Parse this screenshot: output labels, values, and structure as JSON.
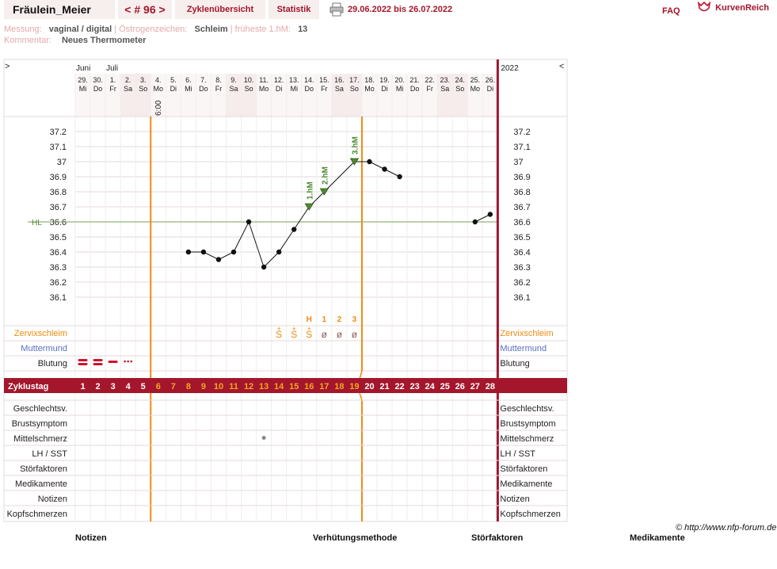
{
  "header": {
    "username": "Fräulein_Meier",
    "cycle_number": "< # 96 >",
    "cycle_overview": "Zyklenübersicht",
    "statistics": "Statistik",
    "date_range": "29.06.2022 bis 26.07.2022",
    "faq": "FAQ",
    "logo_text": "KurvenReich",
    "printer_icon": "printer-icon",
    "logo_icon": "heart-crown-icon"
  },
  "meta": {
    "measurement_label": "Messung:",
    "measurement_value": "vaginal / digital",
    "estrogen_label": "Östrogenzeichen:",
    "estrogen_value": "Schleim",
    "earliest_label": "früheste 1.hM:",
    "earliest_value": "13",
    "comment_label": "Kommentar:",
    "comment_value": "Neues Thermometer"
  },
  "chart": {
    "nav_left": ">",
    "nav_right": "<",
    "year": "2022",
    "months": [
      {
        "label": "Juni",
        "col": 0
      },
      {
        "label": "Juli",
        "col": 2
      }
    ],
    "days": [
      {
        "d": "29.",
        "w": "Mi",
        "weekend": false
      },
      {
        "d": "30.",
        "w": "Do",
        "weekend": false
      },
      {
        "d": "1.",
        "w": "Fr",
        "weekend": false
      },
      {
        "d": "2.",
        "w": "Sa",
        "weekend": true
      },
      {
        "d": "3.",
        "w": "So",
        "weekend": true
      },
      {
        "d": "4.",
        "w": "Mo",
        "weekend": false
      },
      {
        "d": "5.",
        "w": "Di",
        "weekend": false
      },
      {
        "d": "6.",
        "w": "Mi",
        "weekend": false
      },
      {
        "d": "7.",
        "w": "Do",
        "weekend": false
      },
      {
        "d": "8.",
        "w": "Fr",
        "weekend": false
      },
      {
        "d": "9.",
        "w": "Sa",
        "weekend": true
      },
      {
        "d": "10.",
        "w": "So",
        "weekend": true
      },
      {
        "d": "11.",
        "w": "Mo",
        "weekend": false
      },
      {
        "d": "12.",
        "w": "Di",
        "weekend": false
      },
      {
        "d": "13.",
        "w": "Mi",
        "weekend": false
      },
      {
        "d": "14.",
        "w": "Do",
        "weekend": false
      },
      {
        "d": "15.",
        "w": "Fr",
        "weekend": false
      },
      {
        "d": "16.",
        "w": "Sa",
        "weekend": true
      },
      {
        "d": "17.",
        "w": "So",
        "weekend": true
      },
      {
        "d": "18.",
        "w": "Mo",
        "weekend": false
      },
      {
        "d": "19.",
        "w": "Di",
        "weekend": false
      },
      {
        "d": "20.",
        "w": "Mi",
        "weekend": false
      },
      {
        "d": "21.",
        "w": "Do",
        "weekend": false
      },
      {
        "d": "22.",
        "w": "Fr",
        "weekend": false
      },
      {
        "d": "23.",
        "w": "Sa",
        "weekend": true
      },
      {
        "d": "24.",
        "w": "So",
        "weekend": true
      },
      {
        "d": "25.",
        "w": "Mo",
        "weekend": false
      },
      {
        "d": "26.",
        "w": "Di",
        "weekend": false
      }
    ],
    "time_label": "6:00",
    "time_label_day": 6,
    "y_ticks": [
      "37.2",
      "37.1",
      "37",
      "36.9",
      "36.8",
      "36.7",
      "36.6",
      "36.5",
      "36.4",
      "36.3",
      "36.2",
      "36.1"
    ],
    "y_min": 36.1,
    "y_max": 37.2,
    "hl_label": "HL",
    "hl_value": 36.6,
    "temps": [
      {
        "day": 8,
        "t": 36.4
      },
      {
        "day": 9,
        "t": 36.4
      },
      {
        "day": 10,
        "t": 36.35
      },
      {
        "day": 11,
        "t": 36.4
      },
      {
        "day": 12,
        "t": 36.6
      },
      {
        "day": 13,
        "t": 36.3
      },
      {
        "day": 14,
        "t": 36.4
      },
      {
        "day": 15,
        "t": 36.55
      },
      {
        "day": 16,
        "t": 36.7,
        "marker": "1.hM"
      },
      {
        "day": 17,
        "t": 36.8,
        "marker": "2.hM"
      },
      {
        "day": 19,
        "t": 37.0,
        "marker": "3.hM"
      },
      {
        "day": 20,
        "t": 37.0
      },
      {
        "day": 21,
        "t": 36.95
      },
      {
        "day": 22,
        "t": 36.9
      },
      {
        "day": 27,
        "t": 36.6
      },
      {
        "day": 28,
        "t": 36.65
      }
    ],
    "temp_segments": [
      [
        8,
        9,
        10,
        11,
        12,
        13,
        14,
        15,
        16,
        17,
        19,
        20,
        21,
        22
      ],
      [
        27,
        28
      ]
    ],
    "ovulation_day_left": 6,
    "ovulation_day_right": 19,
    "peak_labels": [
      {
        "day": 16,
        "label": "H"
      },
      {
        "day": 17,
        "label": "1"
      },
      {
        "day": 18,
        "label": "2"
      },
      {
        "day": 19,
        "label": "3"
      }
    ],
    "mucus_symbols": [
      {
        "day": 14,
        "sym": "S",
        "top": "+",
        "type": "s"
      },
      {
        "day": 15,
        "sym": "S",
        "top": "+",
        "type": "s"
      },
      {
        "day": 16,
        "sym": "S",
        "top": "+",
        "type": "s"
      },
      {
        "day": 17,
        "sym": "ø",
        "top": "",
        "type": "dry"
      },
      {
        "day": 18,
        "sym": "ø",
        "top": "",
        "type": "dry"
      },
      {
        "day": 19,
        "sym": "ø",
        "top": "",
        "type": "dry"
      }
    ],
    "bleeding": [
      {
        "day": 1,
        "level": "heavy"
      },
      {
        "day": 2,
        "level": "heavy"
      },
      {
        "day": 3,
        "level": "medium"
      },
      {
        "day": 4,
        "level": "spotting"
      }
    ],
    "row_labels": {
      "zervix": "Zervixschleim",
      "muttermund": "Muttermund",
      "blutung": "Blutung",
      "zyklustag": "Zyklustag"
    },
    "cycle_days": [
      "1",
      "2",
      "3",
      "4",
      "5",
      "6",
      "7",
      "8",
      "9",
      "10",
      "11",
      "12",
      "13",
      "14",
      "15",
      "16",
      "17",
      "18",
      "19",
      "20",
      "21",
      "22",
      "23",
      "24",
      "25",
      "26",
      "27",
      "28"
    ],
    "cycle_days_highlight": [
      6,
      7,
      8,
      9,
      10,
      11,
      12,
      13,
      14,
      15,
      16,
      17,
      18,
      19
    ],
    "bottom_rows": [
      "Geschlechtsv.",
      "Brustsymptom",
      "Mittelschmerz",
      "LH / SST",
      "Störfaktoren",
      "Medikamente",
      "Notizen",
      "Kopfschmerzen"
    ],
    "mittelschmerz_day": 13,
    "colors": {
      "accent": "#a3162b",
      "orange": "#f08a10",
      "green_line": "#7aa05a",
      "marker_green": "#4f8a2f",
      "weekend": "#f6ecec",
      "grid": "#e4dada",
      "blue_label": "#5c6fc0"
    }
  },
  "footer": {
    "notizen": "Notizen",
    "verhuetung": "Verhütungsmethode",
    "stoerfaktoren": "Störfaktoren",
    "medikamente": "Medikamente",
    "copyright": "© http://www.nfp-forum.de"
  }
}
